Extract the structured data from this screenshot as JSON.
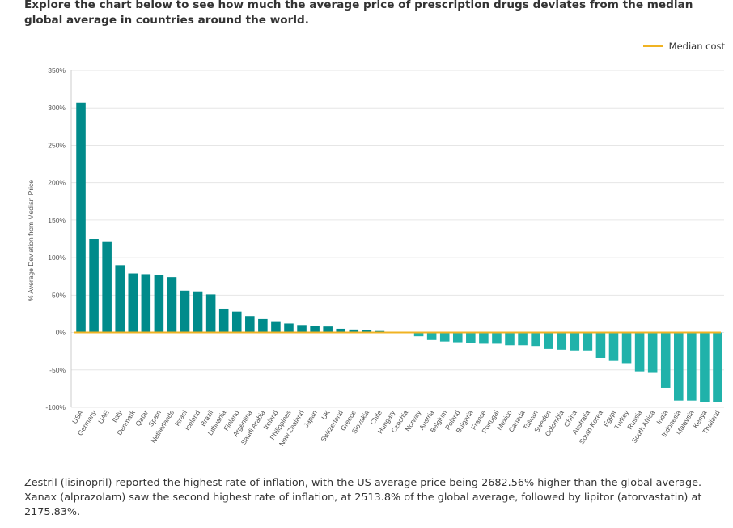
{
  "intro": "Explore the chart below to see how much the average price of prescription drugs deviates from the median global average in countries around the world.",
  "footnote": "Zestril (lisinopril) reported the highest rate of inflation, with the US average price being 2682.56% higher than the global average. Xanax (alprazolam) saw the second highest rate of inflation, at 2513.8% of the global average, followed by lipitor (atorvastatin) at 2175.83%.",
  "colors": {
    "positive": "#008b8b",
    "negative": "#20b2aa",
    "median": "#f0b323",
    "grid": "#e6e6e6"
  },
  "chart_data": {
    "type": "bar",
    "ylabel": "% Average Deviation from Median Price",
    "ylim": [
      -100,
      350
    ],
    "yticks": [
      -100,
      -50,
      0,
      50,
      100,
      150,
      200,
      250,
      300,
      350
    ],
    "ytick_labels": [
      "-100%",
      "-50%",
      "0%",
      "50%",
      "100%",
      "150%",
      "200%",
      "250%",
      "300%",
      "350%"
    ],
    "grid": true,
    "legend": {
      "position": "top-right",
      "entries": [
        "Median cost"
      ]
    },
    "median_line_value": 0,
    "categories": [
      "USA",
      "Germany",
      "UAE",
      "Italy",
      "Denmark",
      "Qatar",
      "Spain",
      "Netherlands",
      "Israel",
      "Iceland",
      "Brazil",
      "Lithuania",
      "Finland",
      "Argentina",
      "Saudi Arabia",
      "Ireland",
      "Philippines",
      "New Zealand",
      "Japan",
      "UK",
      "Switzerland",
      "Greece",
      "Slovakia",
      "Chile",
      "Hungary",
      "Czechia",
      "Norway",
      "Austria",
      "Belgium",
      "Poland",
      "Bulgaria",
      "France",
      "Portugal",
      "Mexico",
      "Canada",
      "Taiwan",
      "Sweden",
      "Colombia",
      "China",
      "Australia",
      "South Korea",
      "Egypt",
      "Turkey",
      "Russia",
      "South Africa",
      "India",
      "Indonesia",
      "Malaysia",
      "Kenya",
      "Thailand"
    ],
    "values": [
      307,
      125,
      121,
      90,
      79,
      78,
      77,
      74,
      56,
      55,
      51,
      32,
      28,
      22,
      18,
      14,
      12,
      10,
      9,
      8,
      5,
      4,
      3,
      2,
      1,
      0,
      -5,
      -10,
      -12,
      -13,
      -14,
      -15,
      -15,
      -17,
      -17,
      -18,
      -22,
      -23,
      -24,
      -24,
      -34,
      -38,
      -41,
      -52,
      -53,
      -74,
      -91,
      -91,
      -93,
      -93
    ]
  }
}
